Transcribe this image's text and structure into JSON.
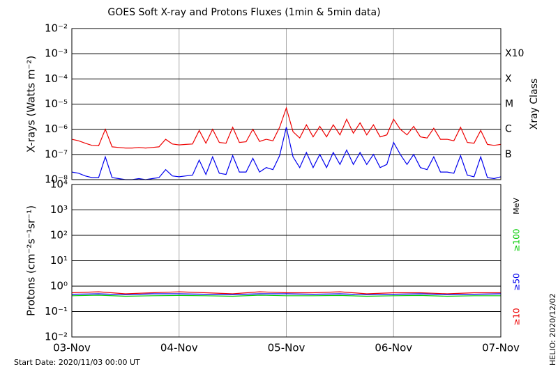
{
  "chart_data": [
    {
      "type": "line",
      "title": "GOES Soft X-ray and Protons Fluxes   (1min & 5min data)",
      "ylabel": "X-rays (Watts m⁻²)",
      "y2label": "Xray Class",
      "log_y": true,
      "ylim": [
        1e-08,
        0.01
      ],
      "yticks": [
        {
          "value": 1e-08,
          "label": "10⁻⁸"
        },
        {
          "value": 1e-07,
          "label": "10⁻⁷"
        },
        {
          "value": 1e-06,
          "label": "10⁻⁶"
        },
        {
          "value": 1e-05,
          "label": "10⁻⁵"
        },
        {
          "value": 0.0001,
          "label": "10⁻⁴"
        },
        {
          "value": 0.001,
          "label": "10⁻³"
        },
        {
          "value": 0.01,
          "label": "10⁻²"
        }
      ],
      "class_ticks": [
        {
          "value": 1e-07,
          "label": "B"
        },
        {
          "value": 1e-06,
          "label": "C"
        },
        {
          "value": 1e-05,
          "label": "M"
        },
        {
          "value": 0.0001,
          "label": "X"
        },
        {
          "value": 0.001,
          "label": "X10"
        }
      ],
      "xlim": [
        0,
        4
      ],
      "x": [
        0,
        0.0625,
        0.125,
        0.1875,
        0.25,
        0.3125,
        0.375,
        0.4375,
        0.5,
        0.5625,
        0.625,
        0.6875,
        0.75,
        0.8125,
        0.875,
        0.9375,
        1,
        1.0625,
        1.125,
        1.1875,
        1.25,
        1.3125,
        1.375,
        1.4375,
        1.5,
        1.5625,
        1.625,
        1.6875,
        1.75,
        1.8125,
        1.875,
        1.9375,
        2,
        2.0625,
        2.125,
        2.1875,
        2.25,
        2.3125,
        2.375,
        2.4375,
        2.5,
        2.5625,
        2.625,
        2.6875,
        2.75,
        2.8125,
        2.875,
        2.9375,
        3,
        3.0625,
        3.125,
        3.1875,
        3.25,
        3.3125,
        3.375,
        3.4375,
        3.5,
        3.5625,
        3.625,
        3.6875,
        3.75,
        3.8125,
        3.875,
        3.9375,
        4
      ],
      "series": [
        {
          "color": "#ee0000",
          "values": [
            4e-07,
            3.5e-07,
            2.8e-07,
            2.3e-07,
            2.2e-07,
            1e-06,
            2e-07,
            1.9e-07,
            1.8e-07,
            1.8e-07,
            1.9e-07,
            1.8e-07,
            1.9e-07,
            2e-07,
            4e-07,
            2.6e-07,
            2.4e-07,
            2.5e-07,
            2.6e-07,
            9e-07,
            2.8e-07,
            1e-06,
            3e-07,
            2.8e-07,
            1.2e-06,
            3e-07,
            3.2e-07,
            1e-06,
            3.3e-07,
            4e-07,
            3.5e-07,
            1.2e-06,
            7e-06,
            8e-07,
            4.5e-07,
            1.5e-06,
            5e-07,
            1.3e-06,
            5e-07,
            1.5e-06,
            6e-07,
            2.5e-06,
            7e-07,
            1.8e-06,
            6e-07,
            1.5e-06,
            5e-07,
            6e-07,
            2.5e-06,
            1e-06,
            6e-07,
            1.3e-06,
            5e-07,
            4.5e-07,
            1.1e-06,
            4e-07,
            4e-07,
            3.5e-07,
            1.2e-06,
            3e-07,
            2.8e-07,
            9e-07,
            2.5e-07,
            2.3e-07,
            2.5e-07
          ]
        },
        {
          "color": "#0000ee",
          "values": [
            2e-08,
            1.8e-08,
            1.4e-08,
            1.2e-08,
            1.2e-08,
            8e-08,
            1.2e-08,
            1.1e-08,
            1e-08,
            1e-08,
            1.1e-08,
            1e-08,
            1.1e-08,
            1.2e-08,
            2.5e-08,
            1.4e-08,
            1.3e-08,
            1.4e-08,
            1.5e-08,
            6e-08,
            1.6e-08,
            8e-08,
            1.8e-08,
            1.6e-08,
            9e-08,
            2e-08,
            2e-08,
            7e-08,
            2e-08,
            3e-08,
            2.5e-08,
            9e-08,
            1.2e-06,
            8e-08,
            3e-08,
            1.2e-07,
            3e-08,
            1e-07,
            3e-08,
            1.2e-07,
            4e-08,
            1.5e-07,
            4e-08,
            1.2e-07,
            4e-08,
            1e-07,
            3e-08,
            4e-08,
            3e-07,
            1e-07,
            4e-08,
            1e-07,
            3e-08,
            2.5e-08,
            8e-08,
            2e-08,
            2e-08,
            1.8e-08,
            9e-08,
            1.5e-08,
            1.3e-08,
            8e-08,
            1.2e-08,
            1.1e-08,
            1.3e-08
          ]
        }
      ]
    },
    {
      "type": "line",
      "ylabel": "Protons (cm⁻²s⁻¹sr⁻¹)",
      "unit_label": "MeV",
      "log_y": true,
      "ylim": [
        0.01,
        10000.0
      ],
      "yticks": [
        {
          "value": 0.01,
          "label": "10⁻²"
        },
        {
          "value": 0.1,
          "label": "10⁻¹"
        },
        {
          "value": 1,
          "label": "10⁰"
        },
        {
          "value": 10,
          "label": "10¹"
        },
        {
          "value": 100,
          "label": "10²"
        },
        {
          "value": 1000,
          "label": "10³"
        },
        {
          "value": 10000,
          "label": "10⁴"
        }
      ],
      "threshold": 10,
      "xlim": [
        0,
        4
      ],
      "xticks": [
        {
          "value": 0,
          "label": "03-Nov"
        },
        {
          "value": 1,
          "label": "04-Nov"
        },
        {
          "value": 2,
          "label": "05-Nov"
        },
        {
          "value": 3,
          "label": "06-Nov"
        },
        {
          "value": 4,
          "label": "07-Nov"
        }
      ],
      "x": [
        0,
        0.25,
        0.5,
        0.75,
        1,
        1.25,
        1.5,
        1.75,
        2,
        2.25,
        2.5,
        2.75,
        3,
        3.25,
        3.5,
        3.75,
        4
      ],
      "series": [
        {
          "name": "≥10",
          "color": "#ee0000",
          "values": [
            0.55,
            0.6,
            0.5,
            0.55,
            0.6,
            0.55,
            0.5,
            0.6,
            0.55,
            0.55,
            0.6,
            0.5,
            0.55,
            0.55,
            0.5,
            0.55,
            0.55
          ]
        },
        {
          "name": "≥50",
          "color": "#0000ee",
          "values": [
            0.48,
            0.5,
            0.46,
            0.5,
            0.5,
            0.48,
            0.47,
            0.5,
            0.5,
            0.48,
            0.5,
            0.46,
            0.48,
            0.5,
            0.47,
            0.48,
            0.5
          ]
        },
        {
          "name": "≥100",
          "color": "#00cc00",
          "values": [
            0.42,
            0.44,
            0.4,
            0.42,
            0.43,
            0.42,
            0.4,
            0.44,
            0.42,
            0.42,
            0.43,
            0.4,
            0.42,
            0.43,
            0.4,
            0.42,
            0.42
          ]
        }
      ]
    }
  ],
  "footer": {
    "start_date": "Start Date: 2020/11/03 00:00 UT",
    "helio": "HELIO: 2020/12/02"
  }
}
